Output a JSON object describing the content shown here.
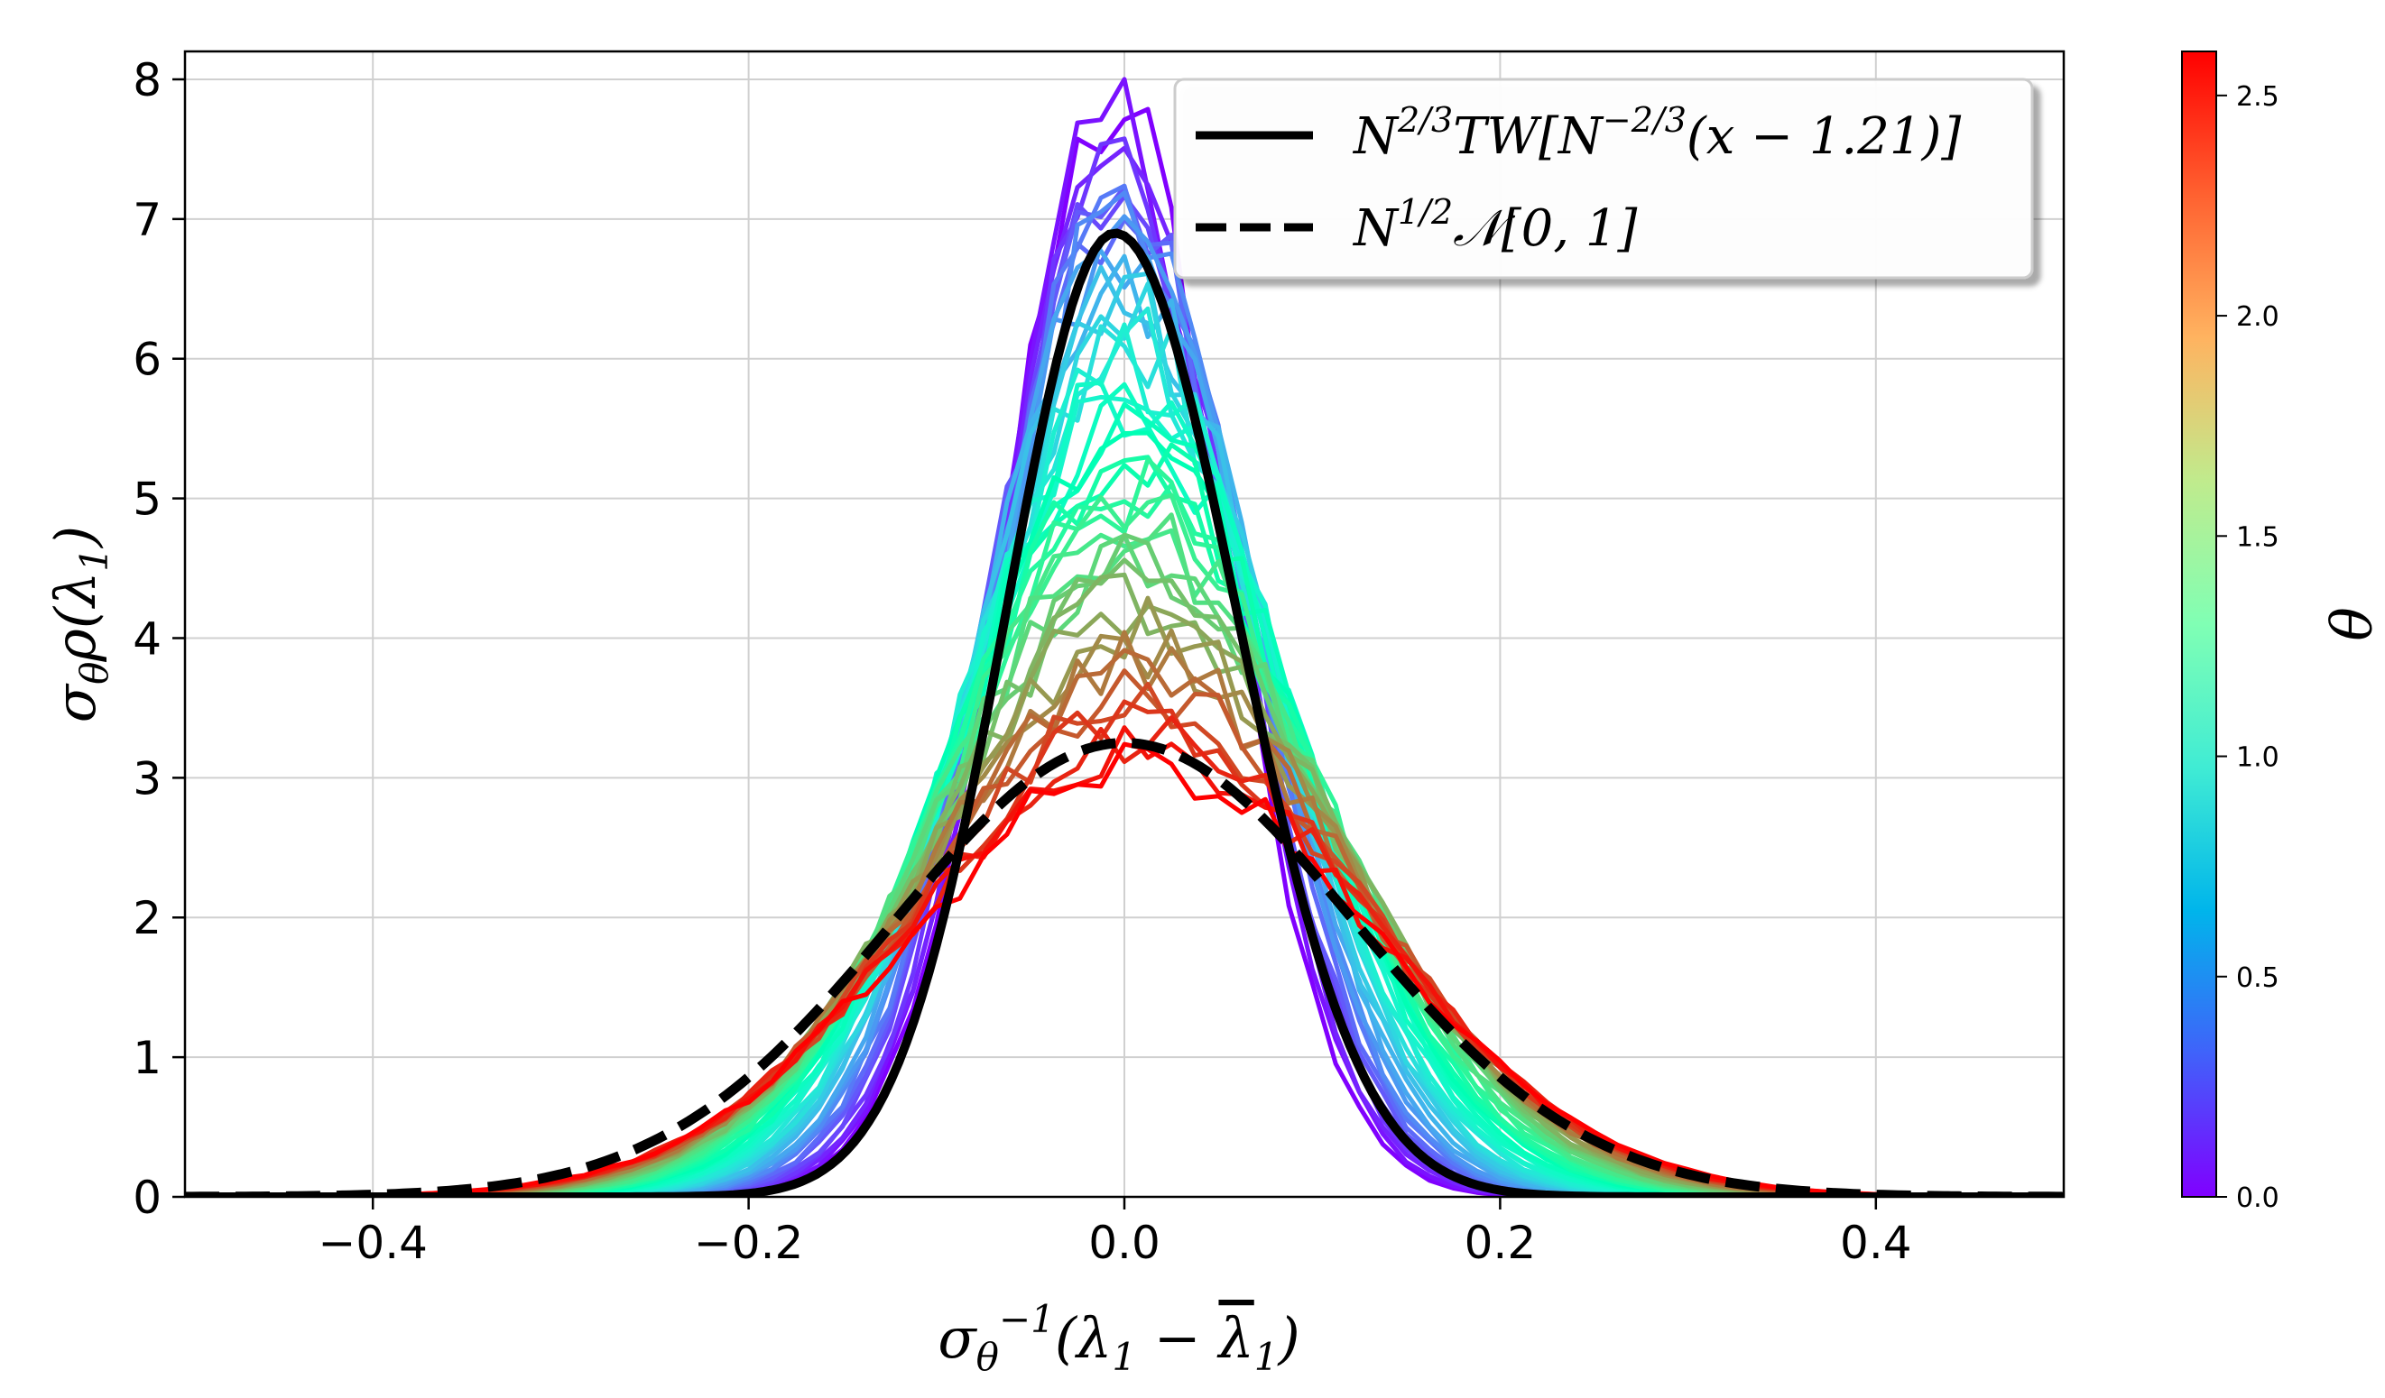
{
  "chart_data": {
    "type": "line",
    "title": "",
    "xlabel": "σθ⁻¹(λ1 − λ̄1)",
    "ylabel": "σθ ρ(λ1)",
    "xlim": [
      -0.5,
      0.5
    ],
    "ylim": [
      0,
      8.2
    ],
    "x_ticks": [
      -0.4,
      -0.2,
      0.0,
      0.2,
      0.4
    ],
    "x_tick_labels": [
      "−0.4",
      "−0.2",
      "0.0",
      "0.2",
      "0.4"
    ],
    "y_ticks": [
      0,
      1,
      2,
      3,
      4,
      5,
      6,
      7,
      8
    ],
    "y_tick_labels": [
      "0",
      "1",
      "2",
      "3",
      "4",
      "5",
      "6",
      "7",
      "8"
    ],
    "grid": true,
    "legend_position": "top-right",
    "legend": [
      {
        "label": "N^{2/3}TW[N^{-2/3}(x − 1.21)]",
        "style": "solid",
        "color": "#000000"
      },
      {
        "label": "N^{1/2}𝒩[0, 1]",
        "style": "dashed",
        "color": "#000000"
      }
    ],
    "reference_curves": {
      "tw": {
        "name": "N^{2/3}TW[N^{-2/3}(x − 1.21)]",
        "peak_x": -0.005,
        "peak_y": 6.9,
        "sd": 0.058
      },
      "normal": {
        "name": "N^{1/2}𝒩[0, 1]",
        "mean": 0.0,
        "sd": 0.1225,
        "peak_y": 3.25
      }
    },
    "empirical_family": {
      "parameter_name": "θ",
      "theta_min": 0.0,
      "theta_max": 2.6,
      "curve_count": 45,
      "peak_height_at_min": 7.8,
      "peak_height_at_max": 3.1
    },
    "colorbar": {
      "label": "θ",
      "range": [
        0.0,
        2.6
      ],
      "ticks": [
        0.0,
        0.5,
        1.0,
        1.5,
        2.0,
        2.5
      ],
      "tick_labels": [
        "0.0",
        "0.5",
        "1.0",
        "1.5",
        "2.0",
        "2.5"
      ],
      "colormap": "rainbow"
    }
  }
}
